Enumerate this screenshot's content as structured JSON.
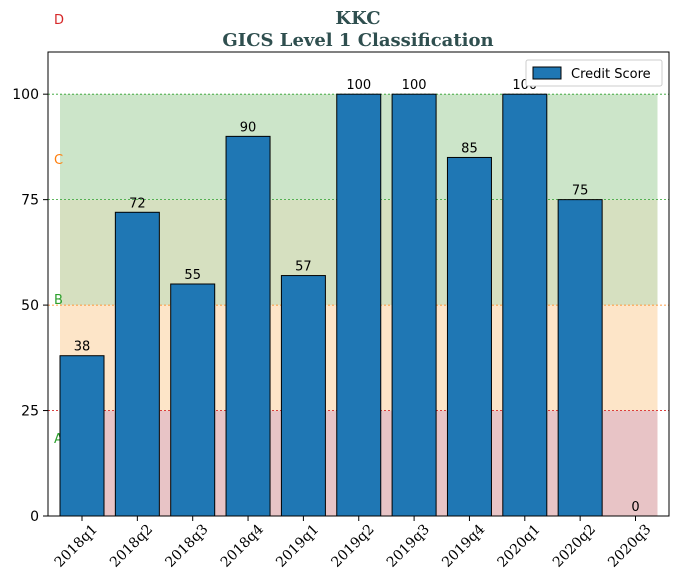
{
  "chart_data": {
    "type": "bar",
    "title": "KKC",
    "subtitle": "GICS Level 1 Classification",
    "xlabel": "",
    "ylabel": "",
    "categories": [
      "2018q1",
      "2018q2",
      "2018q3",
      "2018q4",
      "2019q1",
      "2019q2",
      "2019q3",
      "2019q4",
      "2020q1",
      "2020q2",
      "2020q3"
    ],
    "series": [
      {
        "name": "Credit Score",
        "values": [
          38,
          72,
          55,
          90,
          57,
          100,
          100,
          85,
          100,
          75,
          0
        ],
        "color": "#1f77b4"
      }
    ],
    "ylim": [
      0,
      110
    ],
    "yticks": [
      0,
      25,
      50,
      75,
      100
    ],
    "legend_position": "top-right",
    "grid": false,
    "zones": [
      {
        "label": "A",
        "from": 0,
        "to": 25,
        "fill": "#e8c4c6",
        "line": "#d62728",
        "label_color": "#2ca02c"
      },
      {
        "label": "B",
        "from": 25,
        "to": 50,
        "fill": "#fde5c8",
        "line": "#ff7f0e",
        "label_color": "#2ca02c"
      },
      {
        "label": "C",
        "from": 50,
        "to": 75,
        "fill": "#d6e0c0",
        "line": "#2ca02c",
        "label_color": "#ff7f0e"
      },
      {
        "label": "D",
        "from": 75,
        "to": 100,
        "fill": "#cce5c9",
        "line": "#2ca02c",
        "label_color": "#d62728"
      }
    ]
  }
}
